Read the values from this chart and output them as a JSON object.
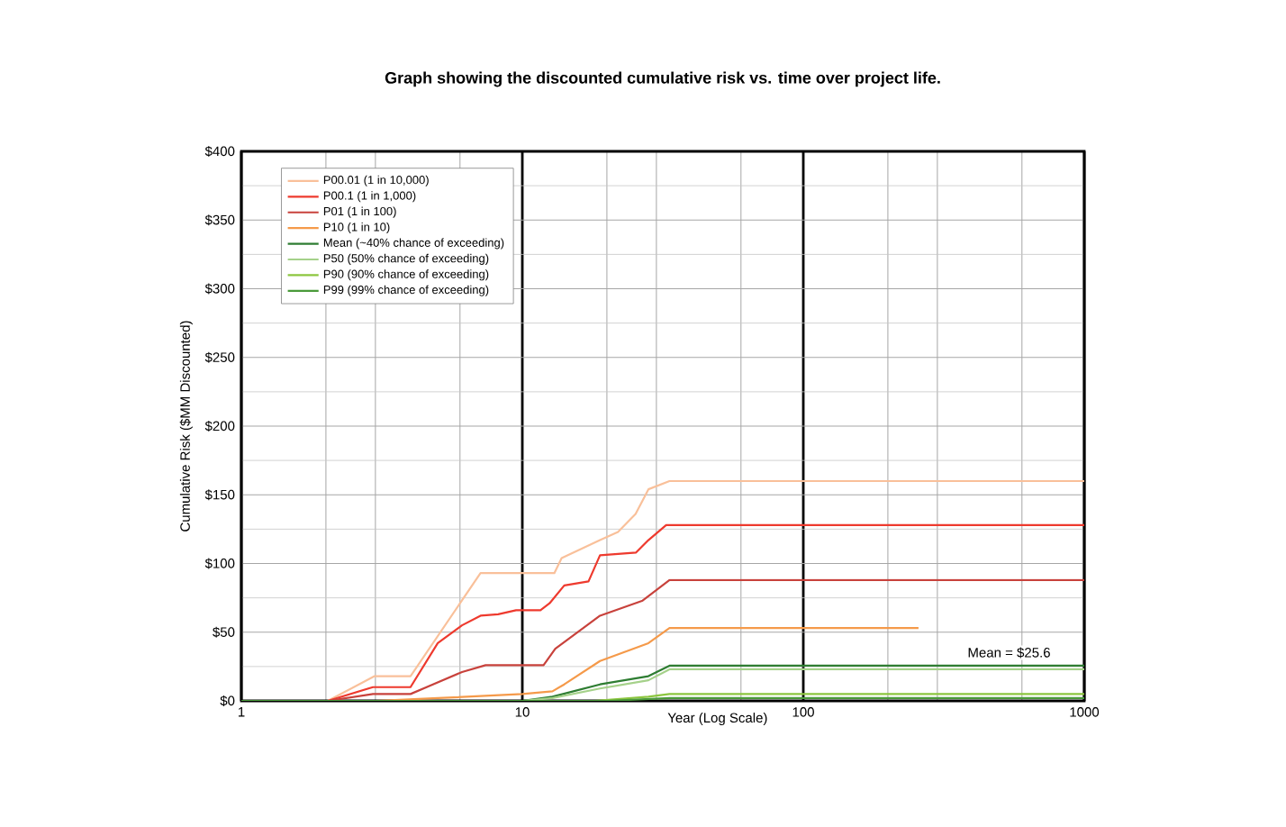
{
  "chart_data": {
    "type": "line",
    "title": "Graph showing the discounted cumulative risk vs. time over project life.",
    "xlabel": "Year (Log Scale)",
    "ylabel": "Cumulative Risk ($MM Discounted)",
    "log": "x",
    "grid": true,
    "legend": "top left",
    "marker": "none",
    "line_style": "solid",
    "xlim": [
      1,
      1000
    ],
    "xticks": [
      1,
      10,
      100,
      1000
    ],
    "ylim": [
      0,
      400
    ],
    "yticks": [
      {
        "value": 0,
        "label": "$0"
      },
      {
        "value": 50,
        "label": "$50"
      },
      {
        "value": 100,
        "label": "$100"
      },
      {
        "value": 150,
        "label": "$150"
      },
      {
        "value": 200,
        "label": "$200"
      },
      {
        "value": 250,
        "label": "$250"
      },
      {
        "value": 300,
        "label": "$300"
      },
      {
        "value": 350,
        "label": "$350"
      },
      {
        "value": 400,
        "label": "$400"
      }
    ],
    "annotations": [
      {
        "text": "Mean = $25.6",
        "x": 540,
        "y": 25.6
      }
    ],
    "series": [
      {
        "name": "P00.01 (1 in 10,000)",
        "color": "#f9c09a",
        "x": [
          1,
          2.03,
          2.98,
          4.0,
          7.1,
          13.0,
          13.8,
          18.9,
          21.9,
          25.3,
          28.1,
          33.4,
          1000
        ],
        "values": [
          0,
          0,
          18,
          18,
          93,
          93,
          104,
          117,
          123,
          136,
          154,
          160,
          160
        ]
      },
      {
        "name": "P00.1 (1 in 1,000)",
        "color": "#ee3a2e",
        "x": [
          1,
          2.03,
          2.94,
          4.0,
          5.0,
          6.1,
          7.1,
          8.2,
          9.5,
          11.6,
          12.5,
          14.1,
          17.2,
          18.9,
          25.4,
          28.1,
          32.5,
          1000
        ],
        "values": [
          0,
          0,
          10,
          10,
          42,
          55,
          62,
          63,
          66,
          66,
          71,
          84,
          87,
          106,
          108,
          117,
          128,
          128
        ]
      },
      {
        "name": "P01 (1 in 100)",
        "color": "#c8423c",
        "x": [
          1,
          2.03,
          2.94,
          4.0,
          6.1,
          7.4,
          11.9,
          13.1,
          18.9,
          26.8,
          33.4,
          1000
        ],
        "values": [
          0,
          0,
          5,
          5,
          21,
          26,
          26,
          38,
          62,
          73,
          88,
          88
        ]
      },
      {
        "name": "P10 (1 in 10)",
        "color": "#f59a4a",
        "x": [
          1,
          3.0,
          5.0,
          10.0,
          12.8,
          14.1,
          18.9,
          28.1,
          33.4,
          257
        ],
        "values": [
          0,
          0,
          2,
          5,
          7,
          12,
          29,
          42,
          53,
          53
        ]
      },
      {
        "name": "Mean (~40% chance of exceeding)",
        "color": "#2e7d32",
        "x": [
          1,
          10.0,
          12.8,
          18.9,
          28.1,
          33.4,
          1000
        ],
        "values": [
          0,
          0,
          3,
          12,
          18,
          25.6,
          25.6
        ]
      },
      {
        "name": "P50 (50% chance of exceeding)",
        "color": "#a5d18a",
        "x": [
          1,
          10.0,
          12.8,
          18.9,
          28.1,
          33.4,
          1000
        ],
        "values": [
          0,
          0,
          2,
          9,
          15,
          23,
          23
        ]
      },
      {
        "name": "P90 (90% chance of exceeding)",
        "color": "#8cc63f",
        "x": [
          1,
          18.0,
          28.1,
          33.4,
          1000
        ],
        "values": [
          0,
          0,
          3,
          5,
          5
        ]
      },
      {
        "name": "P99 (99% chance of exceeding)",
        "color": "#4a9a3a",
        "x": [
          1,
          20.0,
          33.4,
          1000
        ],
        "values": [
          0,
          0,
          2,
          2
        ]
      }
    ]
  }
}
